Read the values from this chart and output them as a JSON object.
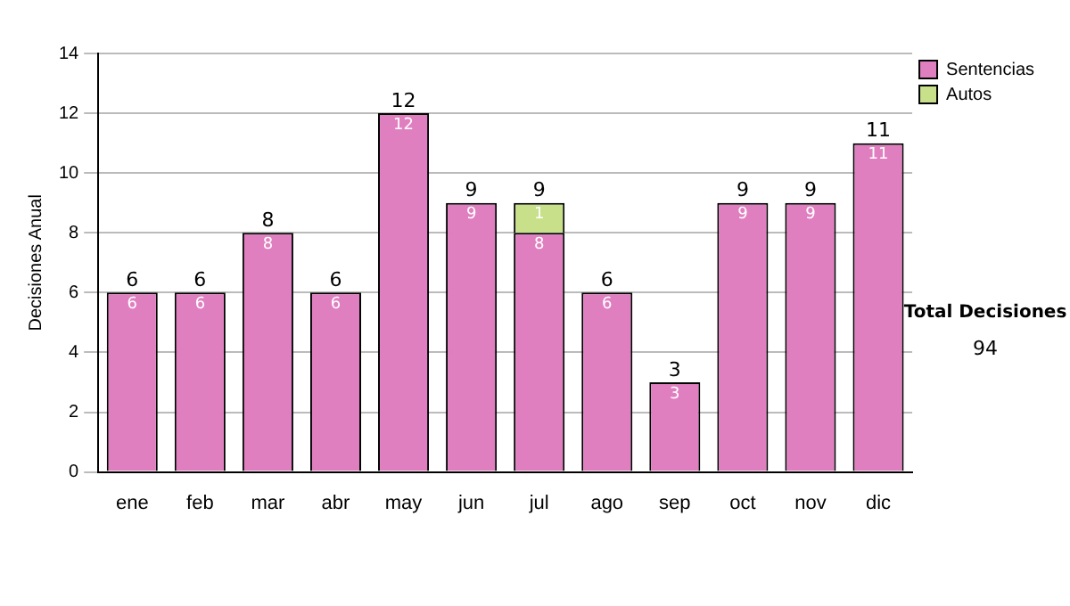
{
  "chart_data": {
    "type": "bar",
    "stacked": true,
    "ylabel": "Decisiones Anual",
    "categories": [
      "ene",
      "feb",
      "mar",
      "abr",
      "may",
      "jun",
      "jul",
      "ago",
      "sep",
      "oct",
      "nov",
      "dic"
    ],
    "series": [
      {
        "name": "Sentencias",
        "color": "#e07fc0",
        "values": [
          6,
          6,
          8,
          6,
          12,
          9,
          8,
          6,
          3,
          9,
          9,
          11
        ],
        "value_labels": [
          "6",
          "6",
          "8",
          "6",
          "12",
          "9",
          "8",
          "6",
          "3",
          "9",
          "9",
          "11"
        ]
      },
      {
        "name": "Autos",
        "color": "#c8e08a",
        "values": [
          0,
          0,
          0,
          0,
          0,
          0,
          1,
          0,
          0,
          0,
          0,
          0
        ],
        "value_labels": [
          null,
          null,
          null,
          null,
          null,
          null,
          "1",
          null,
          null,
          null,
          null,
          null
        ]
      }
    ],
    "totals": [
      "6",
      "6",
      "8",
      "6",
      "12",
      "9",
      "9",
      "6",
      "3",
      "9",
      "9",
      "11"
    ],
    "ylim": [
      0,
      14
    ],
    "yticks": [
      0,
      2,
      4,
      6,
      8,
      10,
      12,
      14
    ],
    "grid": "y",
    "legend": "right",
    "annotations": [
      "Total Decisiones",
      "94"
    ]
  }
}
